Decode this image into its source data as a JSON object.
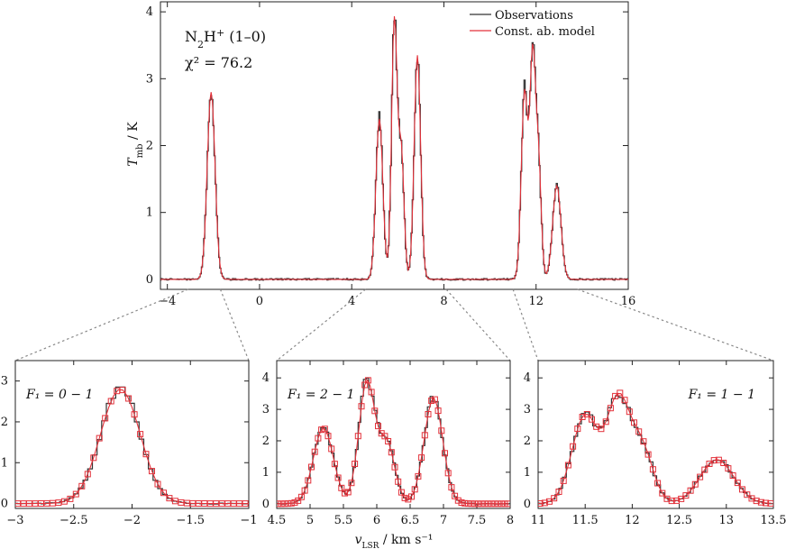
{
  "figure": {
    "top_annotation_line1": "N",
    "top_annotation_sub": "2",
    "top_annotation_mid": "H",
    "top_annotation_sup": "+",
    "top_annotation_tail": " (1–0)",
    "top_annotation_line2": "χ² = 76.2",
    "ylabel_main": "T",
    "ylabel_sub": "mb",
    "ylabel_tail": " / K",
    "xlabel_bottom": "v",
    "xlabel_sub": "LSR",
    "xlabel_tail": " / km s⁻¹",
    "colors": {
      "observations": "#333333",
      "model": "#e3313a"
    }
  },
  "chart_data": [
    {
      "type": "line",
      "panel": "main",
      "xlim": [
        -4.3,
        16
      ],
      "ylim": [
        -0.15,
        4.15
      ],
      "xticks": [
        -4,
        0,
        4,
        8,
        12,
        16
      ],
      "xtick_labels": [
        "−4",
        "0",
        "4",
        "8",
        "12",
        "16"
      ],
      "yticks": [
        0,
        1,
        2,
        3,
        4
      ],
      "ytick_labels": [
        "0",
        "1",
        "2",
        "3",
        "4"
      ],
      "legend": {
        "placement": "top-right",
        "entries": [
          "Observations",
          "Const. ab. model"
        ]
      },
      "peaks": [
        {
          "x": -2.1,
          "y": 2.8,
          "w": 0.17
        },
        {
          "x": 5.2,
          "y": 2.4,
          "w": 0.15
        },
        {
          "x": 5.85,
          "y": 3.85,
          "w": 0.12
        },
        {
          "x": 6.15,
          "y": 1.9,
          "w": 0.12
        },
        {
          "x": 6.85,
          "y": 3.35,
          "w": 0.14
        },
        {
          "x": 11.5,
          "y": 2.8,
          "w": 0.14
        },
        {
          "x": 11.85,
          "y": 3.2,
          "w": 0.12
        },
        {
          "x": 12.1,
          "y": 1.75,
          "w": 0.12
        },
        {
          "x": 12.9,
          "y": 1.4,
          "w": 0.18
        }
      ]
    },
    {
      "type": "line",
      "panel": "F1_0-1",
      "label": "F₁ = 0 − 1",
      "xlim": [
        -3,
        -1
      ],
      "ylim": [
        -0.12,
        3.5
      ],
      "xticks": [
        -3,
        -2.5,
        -2,
        -1.5,
        -1
      ],
      "xtick_labels": [
        "−3",
        "−2.5",
        "−2",
        "−1.5",
        "−1"
      ],
      "yticks": [
        0,
        1,
        2,
        3
      ],
      "ytick_labels": [
        "0",
        "1",
        "2",
        "3"
      ],
      "zoom_source": [
        -3.1,
        -1.7
      ]
    },
    {
      "type": "line",
      "panel": "F1_2-1",
      "label": "F₁ = 2 − 1",
      "xlim": [
        4.5,
        8
      ],
      "ylim": [
        -0.15,
        4.55
      ],
      "xticks": [
        4.5,
        5,
        5.5,
        6,
        6.5,
        7,
        7.5,
        8
      ],
      "xtick_labels": [
        "4.5",
        "5",
        "5.5",
        "6",
        "6.5",
        "7",
        "7.5",
        "8"
      ],
      "yticks": [
        0,
        1,
        2,
        3,
        4
      ],
      "ytick_labels": [
        "0",
        "1",
        "2",
        "3",
        "4"
      ],
      "zoom_source": [
        4.6,
        8.1
      ]
    },
    {
      "type": "line",
      "panel": "F1_1-1",
      "label": "F₁ = 1 − 1",
      "xlim": [
        11,
        13.5
      ],
      "ylim": [
        -0.15,
        4.55
      ],
      "xticks": [
        11,
        11.5,
        12,
        12.5,
        13,
        13.5
      ],
      "xtick_labels": [
        "11",
        "11.5",
        "12",
        "12.5",
        "13",
        "13.5"
      ],
      "yticks": [
        0,
        1,
        2,
        3,
        4
      ],
      "ytick_labels": [
        "0",
        "1",
        "2",
        "3",
        "4"
      ],
      "zoom_source": [
        11.0,
        13.8
      ]
    }
  ]
}
